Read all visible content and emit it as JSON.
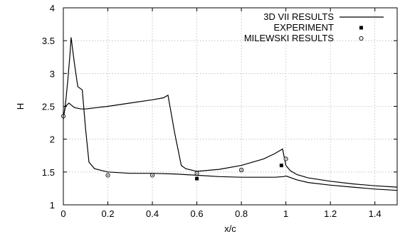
{
  "chart_data": {
    "type": "line",
    "xlabel": "x/c",
    "ylabel": "H",
    "xlim": [
      0,
      1.5
    ],
    "ylim": [
      1,
      4
    ],
    "x_ticks": [
      0,
      0.2,
      0.4,
      0.6,
      0.8,
      1,
      1.2,
      1.4
    ],
    "x_tick_labels": [
      "0",
      "0.2",
      "0.4",
      "0.6",
      "0.8",
      "1",
      "1.2",
      "1.4"
    ],
    "y_ticks": [
      1,
      1.5,
      2,
      2.5,
      3,
      3.5,
      4
    ],
    "y_tick_labels": [
      "1",
      "1.5",
      "2",
      "2.5",
      "3",
      "3.5",
      "4"
    ],
    "grid": true,
    "legend_position": "top-right",
    "legend": {
      "vii": "3D VII RESULTS",
      "experiment": "EXPERIMENT",
      "milewski": "MILEWSKI RESULTS"
    },
    "series": [
      {
        "name": "3D VII RESULTS",
        "style": "line",
        "curves": [
          {
            "x": [
              0,
              0.01,
              0.02,
              0.03,
              0.035,
              0.05,
              0.065,
              0.085,
              0.1,
              0.115,
              0.14,
              0.2,
              0.3,
              0.4,
              0.5,
              0.6,
              0.7,
              0.8,
              0.9,
              0.95,
              0.99,
              1.0,
              1.05,
              1.1,
              1.2,
              1.3,
              1.4,
              1.5
            ],
            "y": [
              2.3,
              2.55,
              2.9,
              3.3,
              3.55,
              3.15,
              2.8,
              2.75,
              2.15,
              1.65,
              1.55,
              1.5,
              1.48,
              1.48,
              1.47,
              1.45,
              1.43,
              1.42,
              1.42,
              1.42,
              1.43,
              1.44,
              1.38,
              1.34,
              1.3,
              1.27,
              1.24,
              1.22
            ]
          },
          {
            "x": [
              0,
              0.01,
              0.025,
              0.05,
              0.08,
              0.1,
              0.15,
              0.2,
              0.3,
              0.4,
              0.45,
              0.47,
              0.5,
              0.53,
              0.55,
              0.6,
              0.7,
              0.8,
              0.9,
              0.95,
              0.985,
              1.0,
              1.02,
              1.05,
              1.1,
              1.2,
              1.3,
              1.4,
              1.5
            ],
            "y": [
              2.35,
              2.5,
              2.55,
              2.48,
              2.46,
              2.46,
              2.48,
              2.5,
              2.55,
              2.6,
              2.63,
              2.67,
              2.1,
              1.6,
              1.55,
              1.51,
              1.54,
              1.6,
              1.7,
              1.78,
              1.85,
              1.6,
              1.52,
              1.46,
              1.41,
              1.36,
              1.32,
              1.29,
              1.27
            ]
          }
        ]
      },
      {
        "name": "EXPERIMENT",
        "style": "square-marker",
        "x": [
          0.6,
          0.8,
          0.98
        ],
        "y": [
          1.4,
          1.53,
          1.6
        ]
      },
      {
        "name": "MILEWSKI RESULTS",
        "style": "circle-marker",
        "x": [
          0,
          0.2,
          0.4,
          0.6,
          0.8,
          1.0
        ],
        "y": [
          2.35,
          1.45,
          1.45,
          1.48,
          1.53,
          1.7
        ]
      }
    ]
  }
}
